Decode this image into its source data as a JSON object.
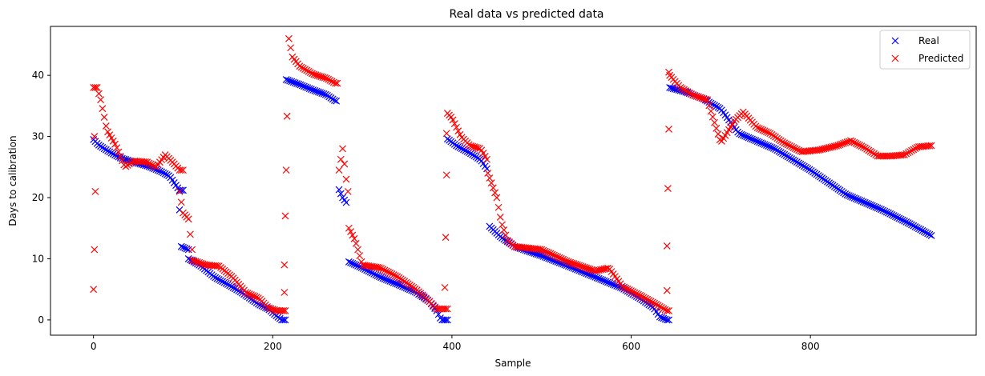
{
  "chart_data": {
    "type": "scatter",
    "title": "Real data vs predicted data",
    "xlabel": "Sample",
    "ylabel": "Days to calibration",
    "xlim": [
      -48,
      985
    ],
    "ylim": [
      -2.5,
      48
    ],
    "xticks": [
      0,
      200,
      400,
      600,
      800
    ],
    "yticks": [
      0,
      10,
      20,
      30,
      40
    ],
    "grid": false,
    "legend_position": "top-right",
    "marker": "x",
    "series": [
      {
        "name": "Real",
        "color": "#0000ff",
        "segments": [
          {
            "x0": 0,
            "x1": 100,
            "points": [
              [
                0,
                29.5
              ],
              [
                5,
                28.7
              ],
              [
                12,
                28
              ],
              [
                20,
                27.3
              ],
              [
                30,
                26.5
              ],
              [
                45,
                25.8
              ],
              [
                60,
                25.2
              ],
              [
                75,
                24.3
              ],
              [
                85,
                23.5
              ],
              [
                92,
                22
              ],
              [
                96,
                21.2
              ]
            ]
          },
          {
            "x0": 96,
            "x1": 106,
            "points": [
              [
                96,
                18
              ],
              [
                98,
                12
              ],
              [
                106,
                11.5
              ]
            ]
          },
          {
            "x0": 106,
            "x1": 215,
            "points": [
              [
                106,
                10
              ],
              [
                120,
                8.8
              ],
              [
                135,
                7
              ],
              [
                150,
                5.8
              ],
              [
                165,
                4.5
              ],
              [
                175,
                3.5
              ],
              [
                185,
                2.5
              ],
              [
                195,
                1.8
              ],
              [
                203,
                0.8
              ],
              [
                210,
                0
              ],
              [
                214,
                0
              ]
            ]
          },
          {
            "x0": 215,
            "x1": 272,
            "points": [
              [
                215,
                39.3
              ],
              [
                230,
                38.5
              ],
              [
                245,
                37.6
              ],
              [
                260,
                36.8
              ],
              [
                270,
                35.8
              ]
            ]
          },
          {
            "x0": 274,
            "x1": 283,
            "points": [
              [
                274,
                21.3
              ],
              [
                278,
                20
              ],
              [
                283,
                19
              ]
            ]
          },
          {
            "x0": 285,
            "x1": 395,
            "points": [
              [
                285,
                9.5
              ],
              [
                300,
                8.5
              ],
              [
                320,
                7
              ],
              [
                340,
                5.8
              ],
              [
                360,
                4.5
              ],
              [
                375,
                3
              ],
              [
                383,
                1.5
              ],
              [
                388,
                0
              ],
              [
                394,
                0
              ]
            ]
          },
          {
            "x0": 395,
            "x1": 440,
            "points": [
              [
                395,
                29.6
              ],
              [
                405,
                28.5
              ],
              [
                420,
                27.3
              ],
              [
                432,
                26.2
              ],
              [
                440,
                24.5
              ]
            ]
          },
          {
            "x0": 442,
            "x1": 642,
            "points": [
              [
                442,
                15.3
              ],
              [
                455,
                13.5
              ],
              [
                470,
                12
              ],
              [
                500,
                10.5
              ],
              [
                530,
                8.8
              ],
              [
                560,
                7
              ],
              [
                590,
                5.2
              ],
              [
                610,
                3.5
              ],
              [
                625,
                2
              ],
              [
                632,
                0.5
              ],
              [
                640,
                0
              ]
            ]
          },
          {
            "x0": 643,
            "x1": 935,
            "points": [
              [
                643,
                38
              ],
              [
                660,
                37.3
              ],
              [
                680,
                36.2
              ],
              [
                700,
                34.5
              ],
              [
                720,
                30.5
              ],
              [
                760,
                28
              ],
              [
                800,
                24.5
              ],
              [
                840,
                20.5
              ],
              [
                880,
                18
              ],
              [
                910,
                15.8
              ],
              [
                935,
                13.8
              ]
            ]
          }
        ]
      },
      {
        "name": "Predicted",
        "color": "#ff0000",
        "segments": [
          {
            "x0": 0,
            "x1": 100,
            "points": [
              [
                4,
                38
              ],
              [
                8,
                36
              ],
              [
                15,
                31
              ],
              [
                25,
                28.5
              ],
              [
                35,
                25
              ],
              [
                45,
                26
              ],
              [
                60,
                25.8
              ],
              [
                70,
                25
              ],
              [
                80,
                27
              ],
              [
                90,
                25.5
              ],
              [
                96,
                24.5
              ]
            ]
          },
          {
            "x0": 96,
            "x1": 110,
            "points": [
              [
                96,
                21
              ],
              [
                100,
                17.5
              ],
              [
                106,
                16.5
              ],
              [
                110,
                11.5
              ]
            ]
          },
          {
            "x0": 110,
            "x1": 215,
            "points": [
              [
                110,
                9.8
              ],
              [
                125,
                9
              ],
              [
                140,
                8.8
              ],
              [
                155,
                7
              ],
              [
                170,
                4.5
              ],
              [
                185,
                3.5
              ],
              [
                195,
                2
              ],
              [
                205,
                1.5
              ],
              [
                214,
                1.5
              ]
            ]
          },
          {
            "x0": 218,
            "x1": 272,
            "points": [
              [
                218,
                46
              ],
              [
                222,
                43
              ],
              [
                230,
                41.5
              ],
              [
                245,
                40.2
              ],
              [
                260,
                39.5
              ],
              [
                270,
                38.7
              ]
            ]
          },
          {
            "x0": 274,
            "x1": 285,
            "points": [
              [
                274,
                24.5
              ],
              [
                278,
                28
              ],
              [
                282,
                23
              ],
              [
                285,
                20
              ]
            ]
          },
          {
            "x0": 285,
            "x1": 395,
            "points": [
              [
                285,
                15
              ],
              [
                292,
                13
              ],
              [
                300,
                9
              ],
              [
                320,
                8.5
              ],
              [
                340,
                7
              ],
              [
                360,
                5
              ],
              [
                375,
                3
              ],
              [
                383,
                1.8
              ],
              [
                394,
                1.8
              ]
            ]
          },
          {
            "x0": 395,
            "x1": 440,
            "points": [
              [
                395,
                33.8
              ],
              [
                400,
                33
              ],
              [
                410,
                30
              ],
              [
                420,
                28.5
              ],
              [
                432,
                28
              ],
              [
                440,
                26
              ]
            ]
          },
          {
            "x0": 440,
            "x1": 642,
            "points": [
              [
                440,
                24
              ],
              [
                445,
                22
              ],
              [
                450,
                20
              ],
              [
                455,
                16
              ],
              [
                462,
                13
              ],
              [
                470,
                12
              ],
              [
                500,
                11.5
              ],
              [
                530,
                9.5
              ],
              [
                560,
                8
              ],
              [
                575,
                8.5
              ],
              [
                590,
                5.5
              ],
              [
                610,
                4
              ],
              [
                625,
                2.8
              ],
              [
                640,
                1.5
              ]
            ]
          },
          {
            "x0": 643,
            "x1": 935,
            "points": [
              [
                643,
                40
              ],
              [
                655,
                38
              ],
              [
                670,
                36.7
              ],
              [
                685,
                36
              ],
              [
                700,
                29
              ],
              [
                715,
                32.5
              ],
              [
                725,
                34
              ],
              [
                740,
                31.5
              ],
              [
                755,
                30.5
              ],
              [
                770,
                29
              ],
              [
                790,
                27.5
              ],
              [
                810,
                27.8
              ],
              [
                830,
                28.5
              ],
              [
                845,
                29.3
              ],
              [
                860,
                28.2
              ],
              [
                875,
                26.8
              ],
              [
                890,
                26.8
              ],
              [
                905,
                27
              ],
              [
                920,
                28.3
              ],
              [
                935,
                28.5
              ]
            ]
          }
        ],
        "outliers": [
          [
            1,
            30
          ],
          [
            2,
            21
          ],
          [
            1,
            11.5
          ],
          [
            0,
            5
          ],
          [
            213,
            4.5
          ],
          [
            213,
            9
          ],
          [
            214,
            17
          ],
          [
            215,
            24.5
          ],
          [
            216,
            33.3
          ],
          [
            392,
            5.3
          ],
          [
            393,
            13.5
          ],
          [
            394,
            23.7
          ],
          [
            394,
            30.5
          ],
          [
            640,
            4.8
          ],
          [
            640,
            12.1
          ],
          [
            641,
            21.5
          ],
          [
            642,
            31.2
          ],
          [
            642,
            40.5
          ]
        ]
      }
    ]
  }
}
